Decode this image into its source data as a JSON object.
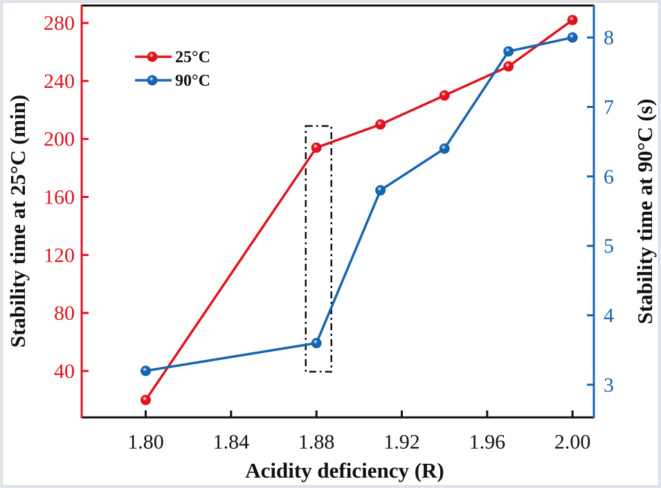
{
  "chart_data": {
    "type": "line",
    "title": "",
    "xlabel": "Acidity deficiency (R)",
    "ylabel_left": "Stability time at 25°C (min)",
    "ylabel_right": "Stability time at 90°C (s)",
    "x": [
      1.8,
      1.88,
      1.91,
      1.94,
      1.97,
      2.0
    ],
    "xlim": [
      1.77,
      2.01
    ],
    "xticks": [
      1.8,
      1.84,
      1.88,
      1.92,
      1.96,
      2.0
    ],
    "xtick_labels": [
      "1.80",
      "1.84",
      "1.88",
      "1.92",
      "1.96",
      "2.00"
    ],
    "ylim_left": [
      8,
      292
    ],
    "yticks_left": [
      40,
      80,
      120,
      160,
      200,
      240,
      280
    ],
    "ylim_right": [
      2.53,
      8.46
    ],
    "yticks_right": [
      3,
      4,
      5,
      6,
      7,
      8
    ],
    "series": [
      {
        "name": "25°C",
        "axis": "left",
        "color": "#e0141e",
        "values": [
          20,
          194,
          210,
          230,
          250,
          282
        ]
      },
      {
        "name": "90°C",
        "axis": "right",
        "color": "#1565b0",
        "values": [
          3.2,
          3.6,
          5.8,
          6.4,
          7.8,
          8.0
        ]
      }
    ],
    "legend": {
      "placement": "top-left",
      "entries": [
        "25°C",
        "90°C"
      ]
    },
    "annotations": [
      {
        "type": "dash-dot-rectangle",
        "x_range": [
          1.875,
          1.887
        ],
        "note": "highlights R = 1.88"
      }
    ],
    "grid": false,
    "colors": {
      "left_axis": "#e0141e",
      "right_axis": "#1565b0",
      "frame": "#111111"
    }
  }
}
